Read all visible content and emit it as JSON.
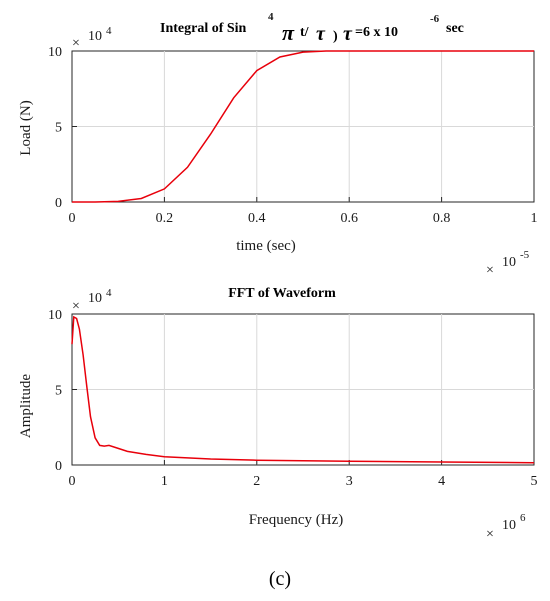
{
  "caption": "(c)",
  "chart_data": [
    {
      "type": "line",
      "title_parts": {
        "text1": "Integral of Sin",
        "exponent": "4",
        "pi": "π",
        "t_over": "t/",
        "tau": "τ",
        "close_paren": ")",
        "tau2": "τ",
        "equals_text": "=6 x 10",
        "exp_neg6": "-6",
        "unit": "sec"
      },
      "xlabel": "time (sec)",
      "ylabel": "Load (N)",
      "x_multiplier": {
        "times": "×",
        "base": "10",
        "exponent": "-5"
      },
      "y_multiplier": {
        "times": "×",
        "base": "10",
        "exponent": "4"
      },
      "xlim": [
        0,
        1
      ],
      "ylim": [
        0,
        10
      ],
      "xticks": [
        "0",
        "0.2",
        "0.4",
        "0.6",
        "0.8",
        "1"
      ],
      "xtick_values": [
        0,
        0.2,
        0.4,
        0.6,
        0.8,
        1
      ],
      "yticks": [
        "0",
        "5",
        "10"
      ],
      "ytick_values": [
        0,
        5,
        10
      ],
      "grid": true,
      "series": [
        {
          "color": "#e8000b",
          "x": [
            0,
            0.05,
            0.1,
            0.15,
            0.2,
            0.25,
            0.3,
            0.35,
            0.4,
            0.45,
            0.5,
            0.55,
            0.6,
            0.7,
            0.8,
            0.9,
            1.0
          ],
          "y": [
            0,
            0.003,
            0.04,
            0.23,
            0.87,
            2.3,
            4.5,
            6.9,
            8.7,
            9.6,
            9.93,
            10,
            10,
            10,
            10,
            10,
            10
          ]
        }
      ]
    },
    {
      "type": "line",
      "title": "FFT of Waveform",
      "xlabel": "Frequency (Hz)",
      "ylabel": "Amplitude",
      "x_multiplier": {
        "times": "×",
        "base": "10",
        "exponent": "6"
      },
      "y_multiplier": {
        "times": "×",
        "base": "10",
        "exponent": "4"
      },
      "xlim": [
        0,
        5
      ],
      "ylim": [
        0,
        10
      ],
      "xticks": [
        "0",
        "1",
        "2",
        "3",
        "4",
        "5"
      ],
      "xtick_values": [
        0,
        1,
        2,
        3,
        4,
        5
      ],
      "yticks": [
        "0",
        "5",
        "10"
      ],
      "ytick_values": [
        0,
        5,
        10
      ],
      "grid": true,
      "series": [
        {
          "color": "#e8000b",
          "x": [
            0,
            0.02,
            0.05,
            0.08,
            0.12,
            0.16,
            0.2,
            0.25,
            0.3,
            0.35,
            0.4,
            0.5,
            0.6,
            0.8,
            1.0,
            1.5,
            2.0,
            3.0,
            4.0,
            5.0
          ],
          "y": [
            8.0,
            9.8,
            9.7,
            9.0,
            7.3,
            5.2,
            3.2,
            1.8,
            1.3,
            1.25,
            1.3,
            1.1,
            0.9,
            0.7,
            0.55,
            0.4,
            0.32,
            0.25,
            0.2,
            0.15
          ]
        }
      ]
    }
  ]
}
